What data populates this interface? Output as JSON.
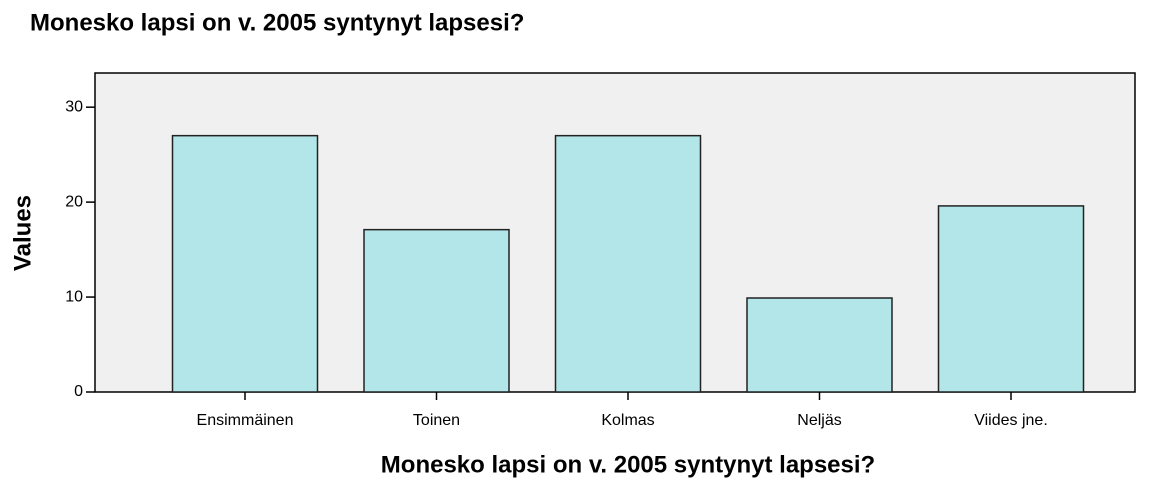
{
  "chart_data": {
    "type": "bar",
    "title": "Monesko lapsi on v. 2005 syntynyt lapsesi?",
    "xlabel": "Monesko lapsi on v. 2005 syntynyt lapsesi?",
    "ylabel": "Values",
    "categories": [
      "Ensimmäinen",
      "Toinen",
      "Kolmas",
      "Neljäs",
      "Viides jne."
    ],
    "values": [
      27,
      17.1,
      27,
      9.9,
      19.6
    ],
    "color": "#b3e6e8",
    "ylim": [
      0,
      33.6
    ],
    "yticks": [
      0,
      10,
      20,
      30
    ],
    "grid": false
  }
}
